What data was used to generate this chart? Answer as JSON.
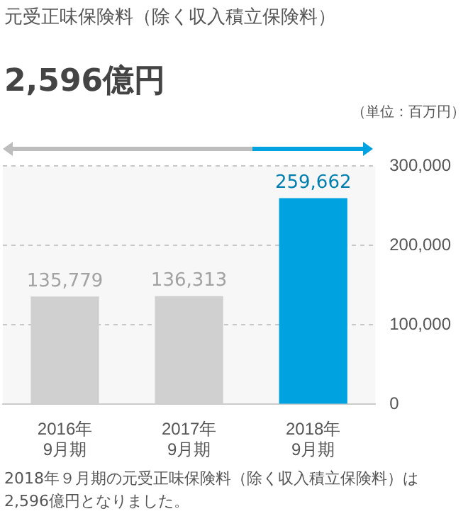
{
  "chart_data": {
    "type": "bar",
    "title": "元受正味保険料（除く収入積立保険料）",
    "subtitle": "2,596億円",
    "ylabel": "（単位：百万円）",
    "categories": [
      "2016年\n9月期",
      "2017年\n9月期",
      "2018年\n9月期"
    ],
    "values": [
      135779,
      136313,
      259662
    ],
    "value_labels": [
      "135,779",
      "136,313",
      "259,662"
    ],
    "colors": [
      "#d0d0d0",
      "#d0d0d0",
      "#00a3e0"
    ],
    "ylim": [
      0,
      300000
    ],
    "yticks": [
      0,
      {
        "value": 100000,
        "label": "100,000"
      },
      {
        "value": 200000,
        "label": "200,000"
      },
      {
        "value": 300000,
        "label": "300,000"
      }
    ],
    "grid": true,
    "legend": false,
    "annotations": [
      "2018年９月期の元受正味保険料（除く収入積立保険料）は\n2,596億円となりました。"
    ]
  }
}
